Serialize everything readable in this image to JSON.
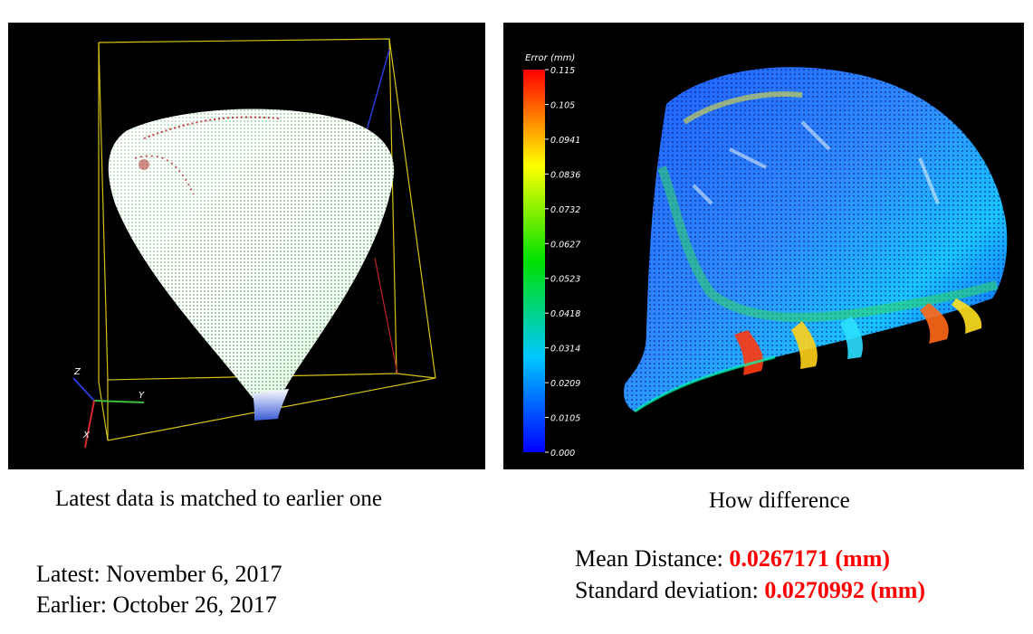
{
  "left_panel": {
    "caption": "Latest data is matched to earlier one",
    "axes": {
      "z": "Z",
      "y": "Y",
      "x": "X"
    }
  },
  "right_panel": {
    "caption": "How difference",
    "colorbar": {
      "title": "Error (mm)",
      "ticks": [
        "0.115",
        "0.105",
        "0.0941",
        "0.0836",
        "0.0732",
        "0.0627",
        "0.0523",
        "0.0418",
        "0.0314",
        "0.0209",
        "0.0105",
        "0.000"
      ]
    }
  },
  "dates": {
    "latest": "Latest: November 6, 2017",
    "earlier": "Earlier: October 26, 2017"
  },
  "stats": {
    "mean_label": "Mean Distance: ",
    "mean_value": "0.0267171 (mm)",
    "std_label": "Standard deviation: ",
    "std_value": "0.0270992 (mm)"
  },
  "colors": {
    "value_red": "#ff0000",
    "bbox_yellow": "#d4c21a",
    "panel_bg": "#000000"
  }
}
